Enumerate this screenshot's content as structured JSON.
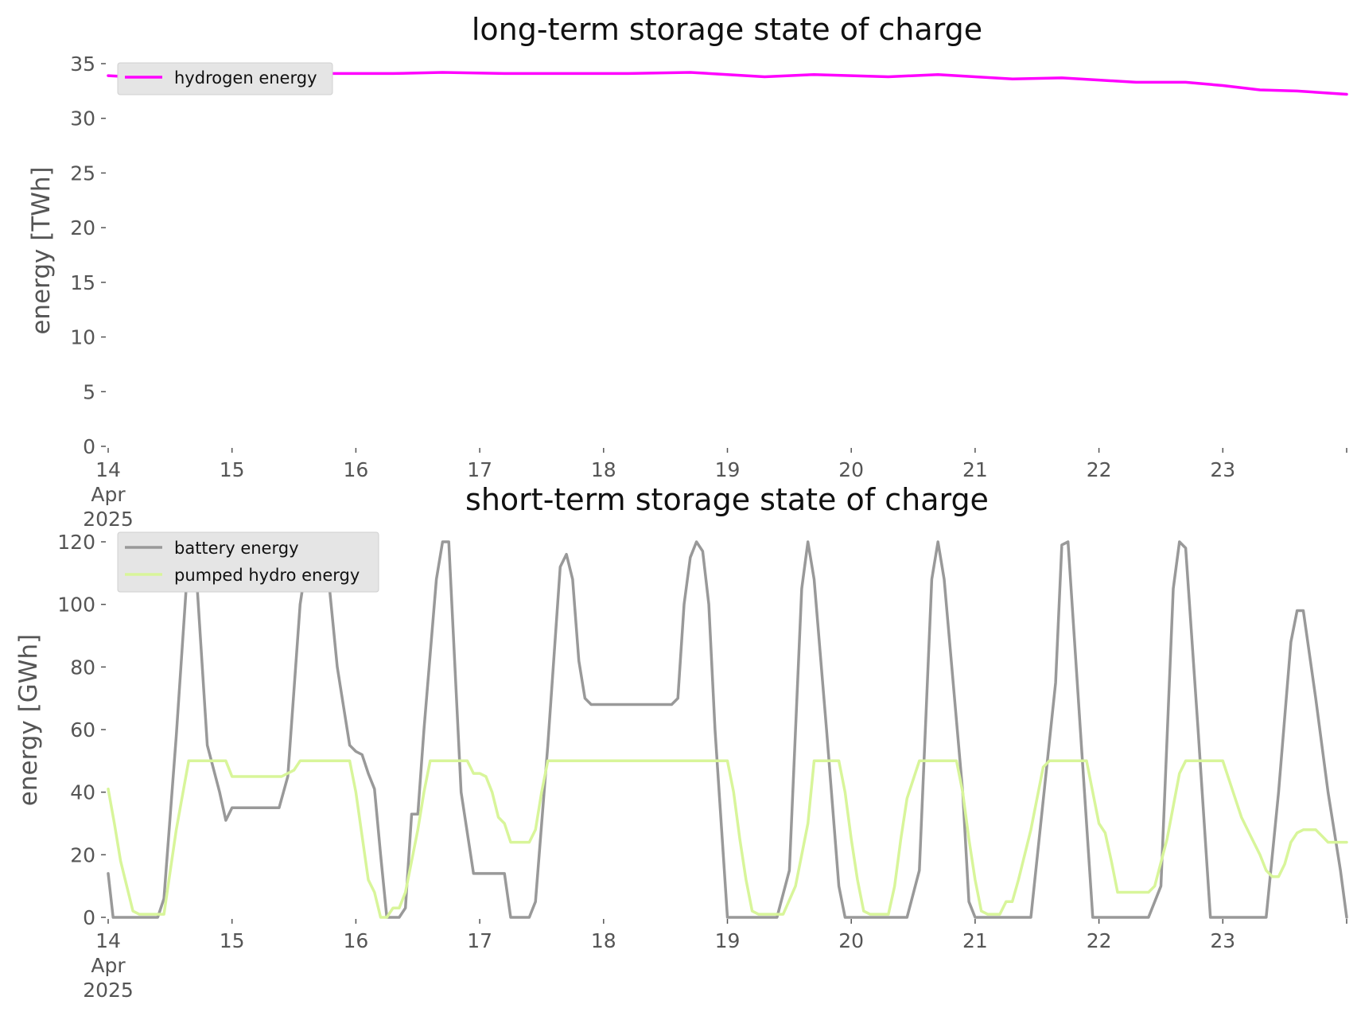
{
  "chart_data": [
    {
      "type": "line",
      "title": "long-term storage state of charge",
      "xlabel": "",
      "ylabel": "energy [TWh]",
      "xlim": [
        "2025-04-14",
        "2025-04-24"
      ],
      "ylim": [
        0,
        35
      ],
      "yticks": [
        0,
        5,
        10,
        15,
        20,
        25,
        30,
        35
      ],
      "xtick_labels": [
        "14\nApr\n2025",
        "15",
        "16",
        "17",
        "18",
        "19",
        "20",
        "21",
        "22",
        "23"
      ],
      "grid": false,
      "legend_position": "top-left",
      "series": [
        {
          "name": "hydrogen energy",
          "color": "#ff00ff",
          "x": [
            0,
            0.5,
            1,
            1.7,
            2.3,
            2.7,
            3.2,
            3.7,
            4.2,
            4.7,
            5.0,
            5.3,
            5.7,
            6.0,
            6.3,
            6.7,
            7.0,
            7.3,
            7.7,
            8.0,
            8.3,
            8.7,
            9.0,
            9.3,
            9.6,
            10.0
          ],
          "values": [
            33.9,
            33.6,
            34.0,
            34.1,
            34.1,
            34.2,
            34.1,
            34.1,
            34.1,
            34.2,
            34.0,
            33.8,
            34.0,
            33.9,
            33.8,
            34.0,
            33.8,
            33.6,
            33.7,
            33.5,
            33.3,
            33.3,
            33.0,
            32.6,
            32.5,
            32.2
          ]
        }
      ]
    },
    {
      "type": "line",
      "title": "short-term storage state of charge",
      "xlabel": "",
      "ylabel": "energy [GWh]",
      "xlim": [
        "2025-04-14",
        "2025-04-24"
      ],
      "ylim": [
        0,
        120
      ],
      "yticks": [
        0,
        20,
        40,
        60,
        80,
        100,
        120
      ],
      "xtick_labels": [
        "14\nApr\n2025",
        "15",
        "16",
        "17",
        "18",
        "19",
        "20",
        "21",
        "22",
        "23"
      ],
      "grid": false,
      "legend_position": "top-left",
      "series": [
        {
          "name": "battery energy",
          "color": "#999999",
          "x": [
            0,
            0.04,
            0.4,
            0.45,
            0.55,
            0.65,
            0.7,
            0.8,
            0.9,
            0.95,
            1.0,
            1.2,
            1.38,
            1.45,
            1.55,
            1.6,
            1.67,
            1.72,
            1.75,
            1.85,
            1.95,
            2.0,
            2.05,
            2.1,
            2.15,
            2.2,
            2.25,
            2.3,
            2.35,
            2.4,
            2.45,
            2.5,
            2.55,
            2.65,
            2.7,
            2.75,
            2.85,
            2.95,
            3.05,
            3.1,
            3.2,
            3.25,
            3.3,
            3.4,
            3.45,
            3.55,
            3.65,
            3.7,
            3.75,
            3.8,
            3.85,
            3.9,
            3.95,
            4.5,
            4.55,
            4.6,
            4.65,
            4.7,
            4.75,
            4.8,
            4.85,
            4.9,
            5.0,
            5.05,
            5.4,
            5.5,
            5.6,
            5.65,
            5.7,
            5.8,
            5.9,
            5.95,
            6.0,
            6.45,
            6.55,
            6.65,
            6.7,
            6.75,
            6.9,
            6.95,
            7.0,
            7.35,
            7.45,
            7.65,
            7.7,
            7.75,
            7.85,
            7.95,
            8.0,
            8.4,
            8.5,
            8.6,
            8.65,
            8.7,
            8.8,
            8.9,
            9.0,
            9.35,
            9.45,
            9.55,
            9.6,
            9.65,
            9.75,
            9.85,
            9.95,
            10.0
          ],
          "values": [
            14,
            0,
            0,
            6,
            58,
            117,
            117,
            55,
            40,
            31,
            35,
            35,
            35,
            45,
            100,
            113,
            113,
            120,
            120,
            80,
            55,
            53,
            52,
            46,
            41,
            20,
            0,
            0,
            0,
            3,
            33,
            33,
            60,
            108,
            120,
            120,
            40,
            14,
            14,
            14,
            14,
            0,
            0,
            0,
            5,
            55,
            112,
            116,
            108,
            82,
            70,
            68,
            68,
            68,
            68,
            70,
            100,
            115,
            120,
            117,
            100,
            60,
            0,
            0,
            0,
            15,
            105,
            120,
            108,
            60,
            10,
            0,
            0,
            0,
            15,
            108,
            120,
            108,
            40,
            5,
            0,
            0,
            0,
            75,
            119,
            120,
            60,
            0,
            0,
            0,
            10,
            105,
            120,
            118,
            60,
            0,
            0,
            0,
            40,
            88,
            98,
            98,
            70,
            40,
            15,
            0
          ]
        },
        {
          "name": "pumped hydro energy",
          "color": "#d8f59a",
          "x": [
            0,
            0.05,
            0.1,
            0.2,
            0.25,
            0.3,
            0.45,
            0.55,
            0.65,
            0.75,
            0.85,
            0.95,
            1.0,
            1.2,
            1.4,
            1.5,
            1.55,
            1.6,
            1.7,
            1.85,
            1.95,
            2.0,
            2.1,
            2.15,
            2.2,
            2.25,
            2.3,
            2.35,
            2.4,
            2.45,
            2.5,
            2.55,
            2.6,
            2.65,
            2.7,
            2.75,
            2.8,
            2.85,
            2.9,
            2.95,
            3.0,
            3.05,
            3.1,
            3.15,
            3.2,
            3.25,
            3.3,
            3.4,
            3.45,
            3.5,
            3.55,
            3.6,
            3.65,
            3.7,
            3.75,
            3.8,
            3.85,
            3.9,
            3.95,
            4.0,
            4.7,
            4.85,
            5.0,
            5.05,
            5.1,
            5.15,
            5.2,
            5.25,
            5.4,
            5.45,
            5.55,
            5.65,
            5.7,
            5.75,
            5.8,
            5.85,
            5.9,
            5.95,
            6.0,
            6.05,
            6.1,
            6.15,
            6.2,
            6.25,
            6.3,
            6.35,
            6.4,
            6.45,
            6.55,
            6.65,
            6.7,
            6.75,
            6.8,
            6.85,
            6.9,
            6.95,
            7.0,
            7.05,
            7.1,
            7.15,
            7.2,
            7.25,
            7.3,
            7.35,
            7.45,
            7.55,
            7.6,
            7.65,
            7.7,
            7.75,
            7.8,
            7.85,
            7.9,
            7.95,
            8.0,
            8.05,
            8.1,
            8.15,
            8.2,
            8.25,
            8.3,
            8.35,
            8.4,
            8.45,
            8.55,
            8.65,
            8.7,
            8.75,
            8.8,
            8.85,
            8.9,
            8.95,
            9.0,
            9.05,
            9.1,
            9.15,
            9.2,
            9.25,
            9.3,
            9.35,
            9.4,
            9.45,
            9.5,
            9.55,
            9.6,
            9.65,
            9.7,
            9.75,
            9.8,
            9.85,
            9.9,
            9.95,
            10.0
          ],
          "values": [
            41,
            30,
            18,
            2,
            1,
            1,
            1,
            28,
            50,
            50,
            50,
            50,
            45,
            45,
            45,
            47,
            50,
            50,
            50,
            50,
            50,
            40,
            12,
            8,
            0,
            0,
            3,
            3,
            8,
            18,
            28,
            40,
            50,
            50,
            50,
            50,
            50,
            50,
            50,
            46,
            46,
            45,
            40,
            32,
            30,
            24,
            24,
            24,
            28,
            40,
            50,
            50,
            50,
            50,
            50,
            50,
            50,
            50,
            50,
            50,
            50,
            50,
            50,
            40,
            25,
            12,
            2,
            1,
            1,
            1,
            10,
            30,
            50,
            50,
            50,
            50,
            50,
            40,
            25,
            12,
            2,
            1,
            1,
            1,
            1,
            10,
            25,
            38,
            50,
            50,
            50,
            50,
            50,
            50,
            40,
            25,
            12,
            2,
            1,
            1,
            1,
            5,
            5,
            12,
            28,
            48,
            50,
            50,
            50,
            50,
            50,
            50,
            50,
            40,
            30,
            27,
            18,
            8,
            8,
            8,
            8,
            8,
            8,
            10,
            25,
            46,
            50,
            50,
            50,
            50,
            50,
            50,
            50,
            44,
            38,
            32,
            28,
            24,
            20,
            15,
            13,
            13,
            17,
            24,
            27,
            28,
            28,
            28,
            26,
            24,
            24,
            24,
            24
          ]
        }
      ]
    }
  ]
}
